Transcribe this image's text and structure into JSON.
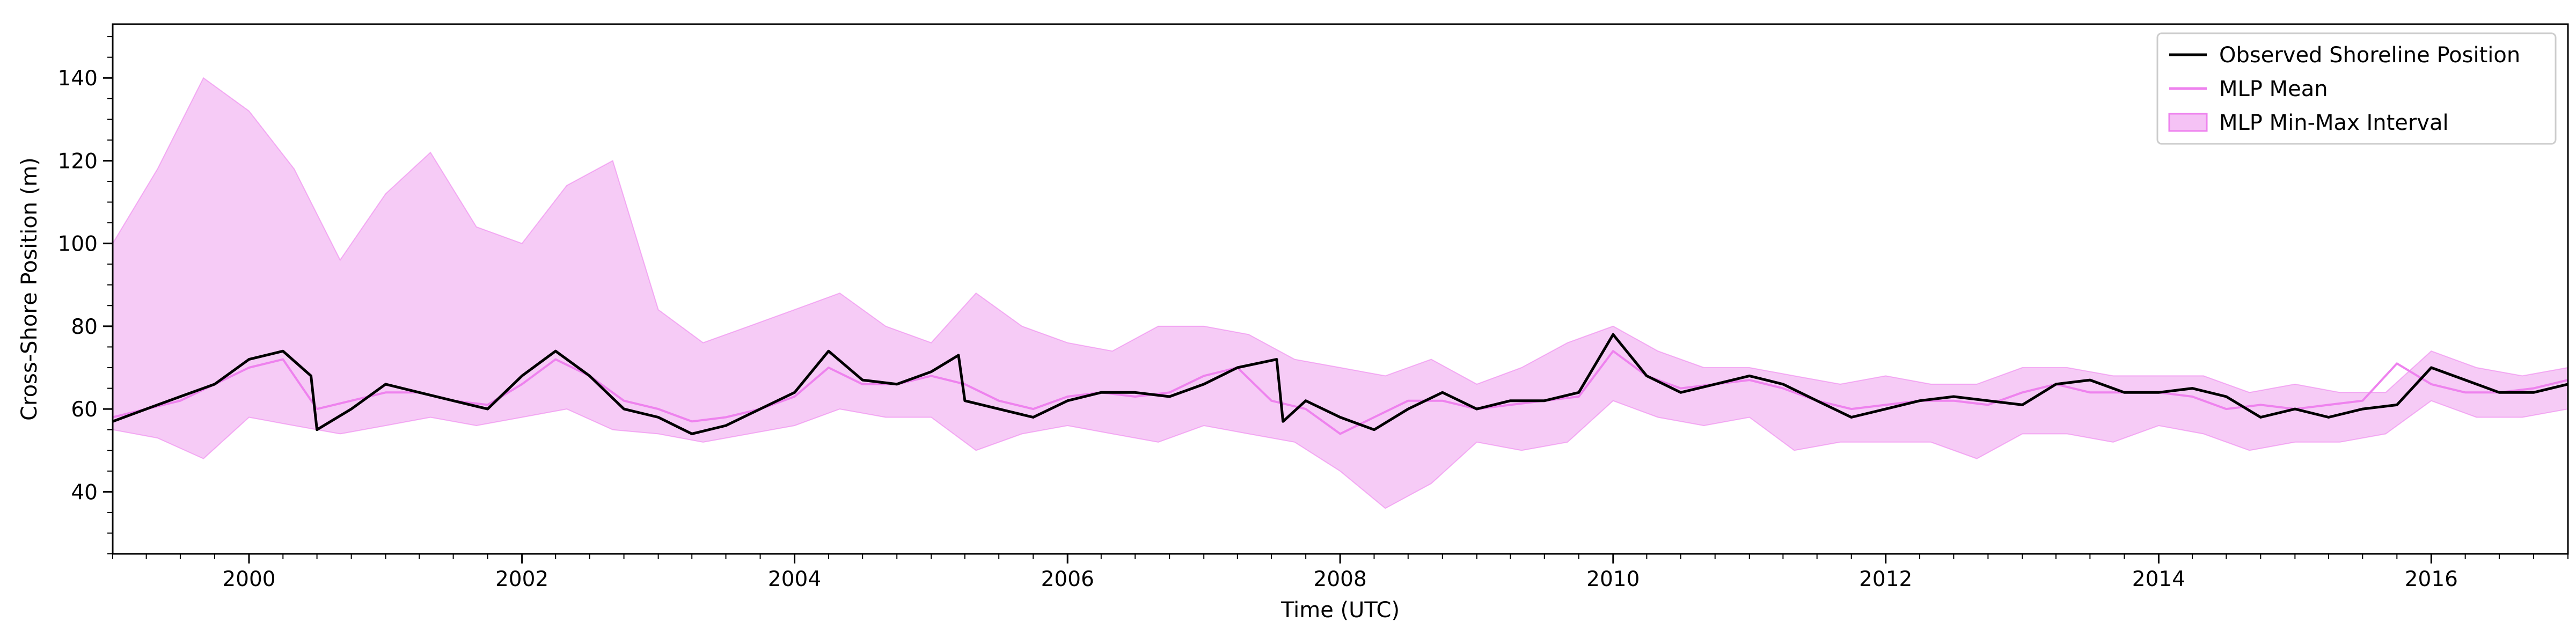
{
  "chart_data": {
    "type": "line",
    "title": "",
    "xlabel": "Time (UTC)",
    "ylabel": "Cross-Shore Position (m)",
    "xlim": [
      "1999-01-01",
      "2017-01-01"
    ],
    "ylim": [
      25,
      153
    ],
    "x_ticks": [
      "2000",
      "2002",
      "2004",
      "2006",
      "2008",
      "2010",
      "2012",
      "2014",
      "2016"
    ],
    "y_ticks": [
      "40",
      "60",
      "80",
      "100",
      "120",
      "140"
    ],
    "grid": false,
    "legend_position": "top-right",
    "colors": {
      "observed": "#000000",
      "mlp_mean": "#ee82ee",
      "interval_fill": "#f5c2f5",
      "interval_edge": "#ee82ee"
    },
    "series": [
      {
        "name": "Observed Shoreline Position",
        "kind": "line",
        "x": [
          "1999-01-01",
          "1999-04-01",
          "1999-07-01",
          "1999-10-01",
          "2000-01-01",
          "2000-04-01",
          "2000-06-15",
          "2000-07-01",
          "2000-10-01",
          "2001-01-01",
          "2001-04-01",
          "2001-07-01",
          "2001-10-01",
          "2002-01-01",
          "2002-04-01",
          "2002-07-01",
          "2002-10-01",
          "2003-01-01",
          "2003-04-01",
          "2003-07-01",
          "2003-10-01",
          "2004-01-01",
          "2004-04-01",
          "2004-07-01",
          "2004-10-01",
          "2005-01-01",
          "2005-03-15",
          "2005-04-01",
          "2005-07-01",
          "2005-10-01",
          "2006-01-01",
          "2006-04-01",
          "2006-07-01",
          "2006-10-01",
          "2007-01-01",
          "2007-04-01",
          "2007-07-15",
          "2007-08-01",
          "2007-10-01",
          "2008-01-01",
          "2008-04-01",
          "2008-07-01",
          "2008-10-01",
          "2009-01-01",
          "2009-04-01",
          "2009-07-01",
          "2009-10-01",
          "2010-01-01",
          "2010-04-01",
          "2010-07-01",
          "2010-10-01",
          "2011-01-01",
          "2011-04-01",
          "2011-07-01",
          "2011-10-01",
          "2012-01-01",
          "2012-04-01",
          "2012-07-01",
          "2012-10-01",
          "2013-01-01",
          "2013-04-01",
          "2013-07-01",
          "2013-10-01",
          "2014-01-01",
          "2014-04-01",
          "2014-07-01",
          "2014-10-01",
          "2015-01-01",
          "2015-04-01",
          "2015-07-01",
          "2015-10-01",
          "2016-01-01",
          "2016-04-01",
          "2016-07-01",
          "2016-10-01",
          "2017-01-01"
        ],
        "y": [
          57,
          60,
          63,
          66,
          72,
          74,
          68,
          55,
          60,
          66,
          64,
          62,
          60,
          68,
          74,
          68,
          60,
          58,
          54,
          56,
          60,
          64,
          74,
          67,
          66,
          69,
          73,
          62,
          60,
          58,
          62,
          64,
          64,
          63,
          66,
          70,
          72,
          57,
          62,
          58,
          55,
          60,
          64,
          60,
          62,
          62,
          64,
          78,
          68,
          64,
          66,
          68,
          66,
          62,
          58,
          60,
          62,
          63,
          62,
          61,
          66,
          67,
          64,
          64,
          65,
          63,
          58,
          60,
          58,
          60,
          61,
          70,
          67,
          64,
          64,
          66
        ]
      },
      {
        "name": "MLP Mean",
        "kind": "line",
        "x": [
          "1999-01-01",
          "1999-04-01",
          "1999-07-01",
          "1999-10-01",
          "2000-01-01",
          "2000-04-01",
          "2000-07-01",
          "2000-10-01",
          "2001-01-01",
          "2001-04-01",
          "2001-07-01",
          "2001-10-01",
          "2002-01-01",
          "2002-04-01",
          "2002-07-01",
          "2002-10-01",
          "2003-01-01",
          "2003-04-01",
          "2003-07-01",
          "2003-10-01",
          "2004-01-01",
          "2004-04-01",
          "2004-07-01",
          "2004-10-01",
          "2005-01-01",
          "2005-04-01",
          "2005-07-01",
          "2005-10-01",
          "2006-01-01",
          "2006-04-01",
          "2006-07-01",
          "2006-10-01",
          "2007-01-01",
          "2007-04-01",
          "2007-07-01",
          "2007-10-01",
          "2008-01-01",
          "2008-04-01",
          "2008-07-01",
          "2008-10-01",
          "2009-01-01",
          "2009-04-01",
          "2009-07-01",
          "2009-10-01",
          "2010-01-01",
          "2010-04-01",
          "2010-07-01",
          "2010-10-01",
          "2011-01-01",
          "2011-04-01",
          "2011-07-01",
          "2011-10-01",
          "2012-01-01",
          "2012-04-01",
          "2012-07-01",
          "2012-10-01",
          "2013-01-01",
          "2013-04-01",
          "2013-07-01",
          "2013-10-01",
          "2014-01-01",
          "2014-04-01",
          "2014-07-01",
          "2014-10-01",
          "2015-01-01",
          "2015-04-01",
          "2015-07-01",
          "2015-10-01",
          "2016-01-01",
          "2016-04-01",
          "2016-07-01",
          "2016-10-01",
          "2017-01-01"
        ],
        "y": [
          58,
          60,
          62,
          66,
          70,
          72,
          60,
          62,
          64,
          64,
          62,
          61,
          66,
          72,
          68,
          62,
          60,
          57,
          58,
          60,
          63,
          70,
          66,
          66,
          68,
          66,
          62,
          60,
          63,
          64,
          63,
          64,
          68,
          70,
          62,
          60,
          54,
          58,
          62,
          62,
          60,
          61,
          62,
          63,
          74,
          68,
          65,
          66,
          67,
          65,
          62,
          60,
          61,
          62,
          62,
          61,
          64,
          66,
          64,
          64,
          64,
          63,
          60,
          61,
          60,
          61,
          62,
          71,
          66,
          64,
          64,
          65,
          67
        ]
      },
      {
        "name": "MLP Min-Max Interval",
        "kind": "band",
        "x": [
          "1999-01-01",
          "1999-05-01",
          "1999-09-01",
          "2000-01-01",
          "2000-05-01",
          "2000-09-01",
          "2001-01-01",
          "2001-05-01",
          "2001-09-01",
          "2002-01-01",
          "2002-05-01",
          "2002-09-01",
          "2003-01-01",
          "2003-05-01",
          "2003-09-01",
          "2004-01-01",
          "2004-05-01",
          "2004-09-01",
          "2005-01-01",
          "2005-05-01",
          "2005-09-01",
          "2006-01-01",
          "2006-05-01",
          "2006-09-01",
          "2007-01-01",
          "2007-05-01",
          "2007-09-01",
          "2008-01-01",
          "2008-05-01",
          "2008-09-01",
          "2009-01-01",
          "2009-05-01",
          "2009-09-01",
          "2010-01-01",
          "2010-05-01",
          "2010-09-01",
          "2011-01-01",
          "2011-05-01",
          "2011-09-01",
          "2012-01-01",
          "2012-05-01",
          "2012-09-01",
          "2013-01-01",
          "2013-05-01",
          "2013-09-01",
          "2014-01-01",
          "2014-05-01",
          "2014-09-01",
          "2015-01-01",
          "2015-05-01",
          "2015-09-01",
          "2016-01-01",
          "2016-05-01",
          "2016-09-01",
          "2017-01-01"
        ],
        "min": [
          55,
          53,
          48,
          58,
          56,
          54,
          56,
          58,
          56,
          58,
          60,
          55,
          54,
          52,
          54,
          56,
          60,
          58,
          58,
          50,
          54,
          56,
          54,
          52,
          56,
          54,
          52,
          45,
          36,
          42,
          52,
          50,
          52,
          62,
          58,
          56,
          58,
          50,
          52,
          52,
          52,
          48,
          54,
          54,
          52,
          56,
          54,
          50,
          52,
          52,
          54,
          62,
          58,
          58,
          60
        ],
        "max": [
          100,
          118,
          140,
          132,
          118,
          96,
          112,
          122,
          104,
          100,
          114,
          120,
          84,
          76,
          80,
          84,
          88,
          80,
          76,
          88,
          80,
          76,
          74,
          80,
          80,
          78,
          72,
          70,
          68,
          72,
          66,
          70,
          76,
          80,
          74,
          70,
          70,
          68,
          66,
          68,
          66,
          66,
          70,
          70,
          68,
          68,
          68,
          64,
          66,
          64,
          64,
          74,
          70,
          68,
          70
        ]
      }
    ]
  }
}
